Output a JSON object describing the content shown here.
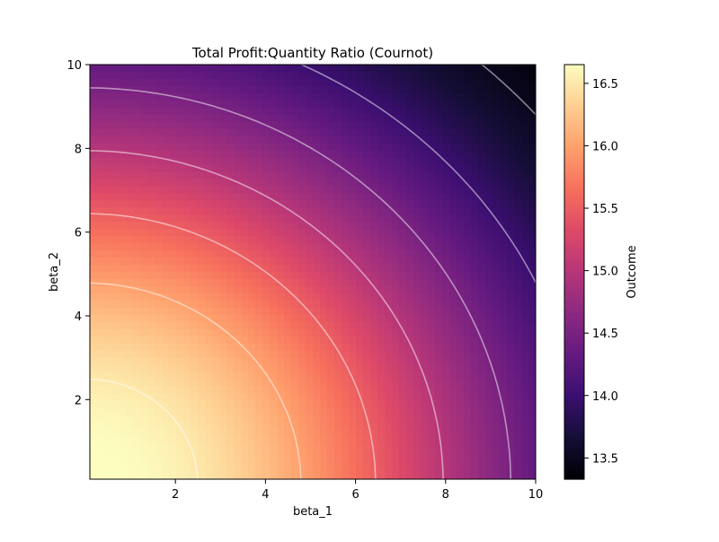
{
  "chart_data": {
    "type": "heatmap",
    "title": "Total Profit:Quantity Ratio (Cournot)",
    "xlabel": "beta_1",
    "ylabel": "beta_2",
    "xlim": [
      0.1,
      10
    ],
    "ylim": [
      0.1,
      10
    ],
    "x_ticks": [
      2,
      4,
      6,
      8,
      10
    ],
    "y_ticks": [
      2,
      4,
      6,
      8,
      10
    ],
    "colormap": "magma",
    "colorbar": {
      "label": "Outcome",
      "range": [
        13.33,
        16.65
      ],
      "ticks": [
        13.5,
        14.0,
        14.5,
        15.0,
        15.5,
        16.0,
        16.5
      ]
    },
    "contours": {
      "levels": [
        13.5,
        14.0,
        14.5,
        15.0,
        15.5,
        16.0,
        16.5
      ],
      "color": "#ffffff"
    },
    "extremes": {
      "max": {
        "beta_1": 0.1,
        "beta_2": 0.1,
        "outcome": 16.65
      },
      "min": {
        "beta_1": 10,
        "beta_2": 10,
        "outcome": 13.33
      }
    }
  }
}
